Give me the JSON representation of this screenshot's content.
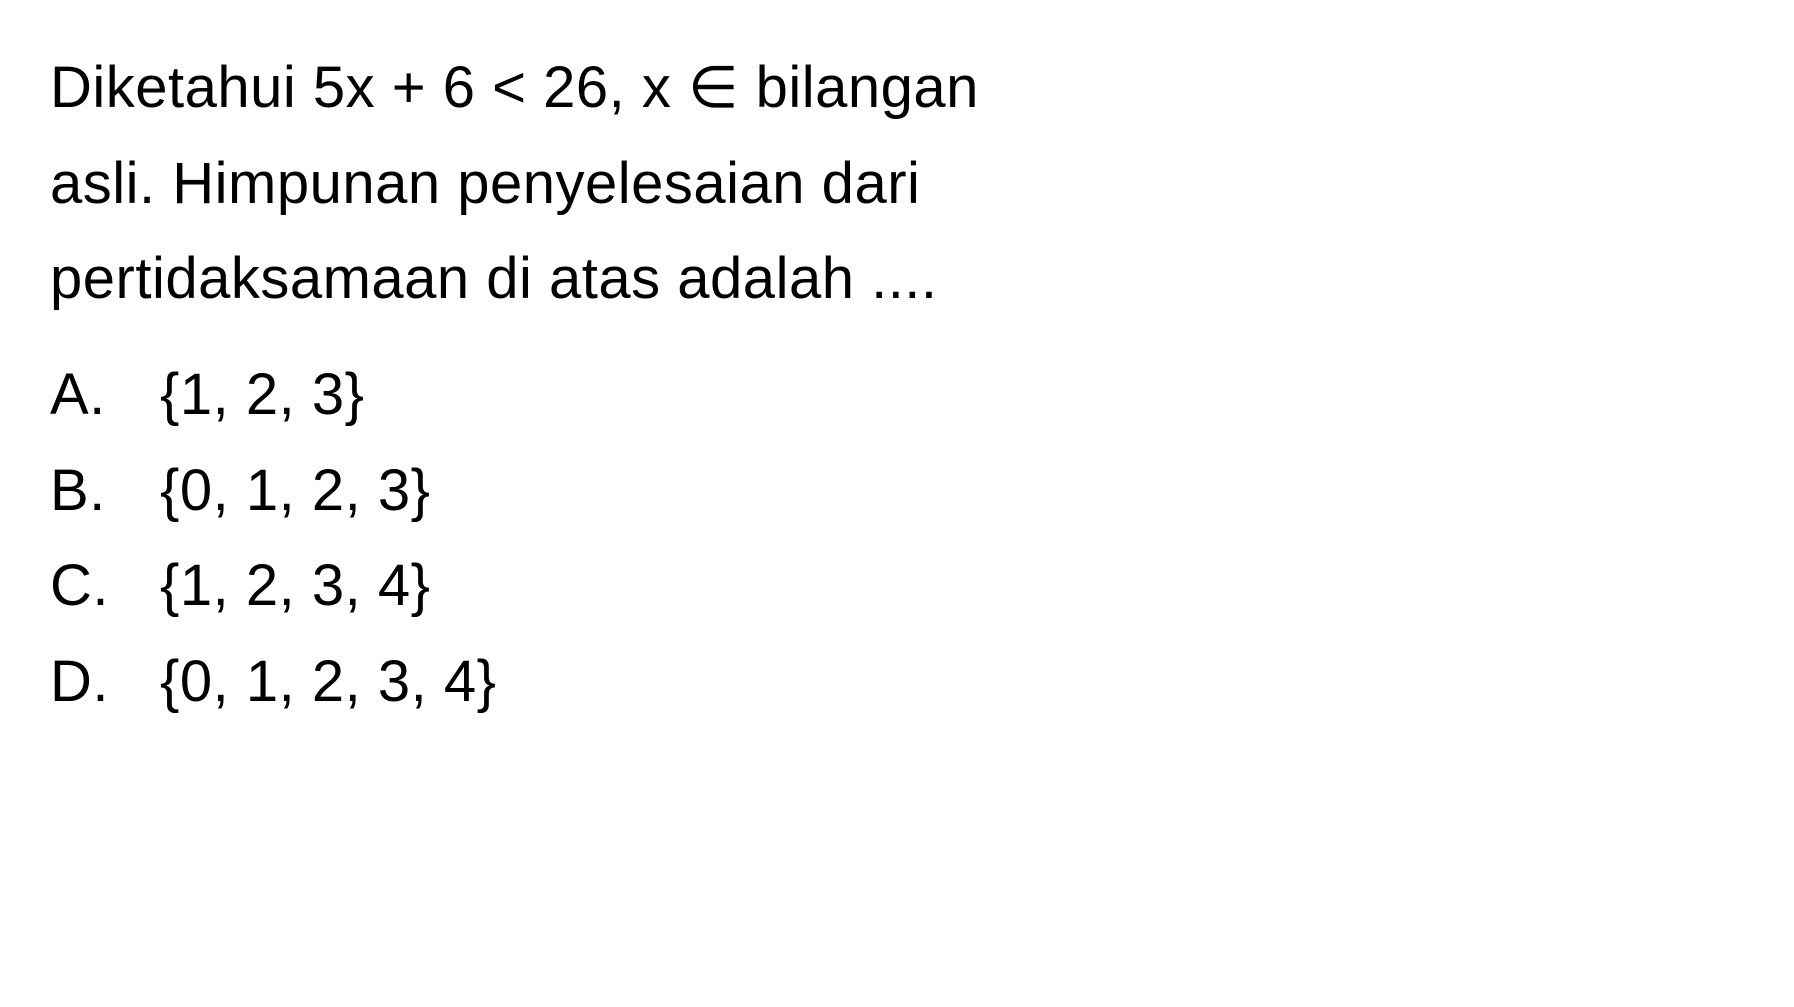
{
  "question": {
    "line1": "Diketahui 5x + 6 < 26, x ∈ bilangan",
    "line2": "asli.    Himpunan    penyelesaian    dari",
    "line3": "pertidaksamaan di atas adalah ...."
  },
  "options": [
    {
      "letter": "A.",
      "value": "{1, 2, 3}"
    },
    {
      "letter": "B.",
      "value": "{0, 1, 2, 3}"
    },
    {
      "letter": "C.",
      "value": "{1, 2, 3, 4}"
    },
    {
      "letter": "D.",
      "value": "{0, 1, 2, 3, 4}"
    }
  ],
  "styling": {
    "background_color": "#ffffff",
    "text_color": "#000000",
    "font_size": 58,
    "font_family": "Arial",
    "line_height": 1.65
  }
}
